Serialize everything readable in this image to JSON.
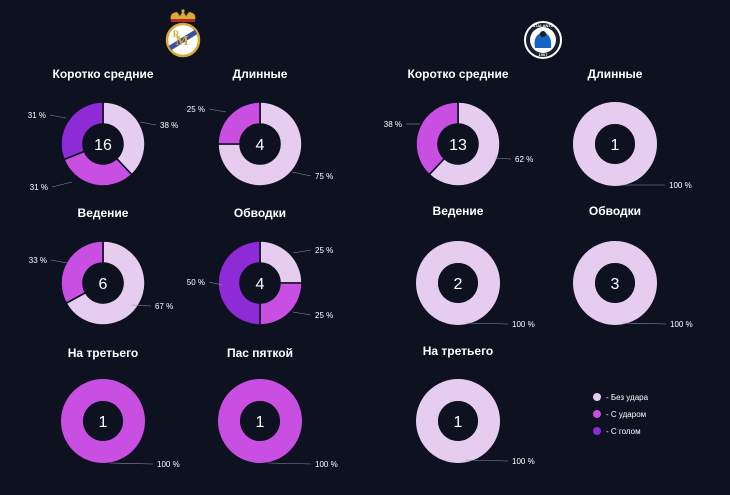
{
  "colors": {
    "bez_udara": "#e6cdf0",
    "s_udarom": "#c94fe3",
    "s_golom": "#8e2bd6",
    "background": "#0d1120",
    "hole": "#0d1120"
  },
  "logos": {
    "left": "real-madrid-crest",
    "right": "atalanta-crest",
    "right_text_top": "ATALANTA",
    "right_text_bottom": "1907"
  },
  "legend": {
    "items": [
      {
        "label": "- Без удара",
        "color": "#e6cdf0"
      },
      {
        "label": "- С ударом",
        "color": "#c94fe3"
      },
      {
        "label": "- С голом",
        "color": "#8e2bd6"
      }
    ]
  },
  "chart_data": [
    {
      "type": "pie",
      "team": "left",
      "title": "Коротко средние",
      "total": "16",
      "slices": [
        {
          "name": "Без удара",
          "value": 38,
          "label": "38 %"
        },
        {
          "name": "С ударом",
          "value": 31,
          "label": "31 %"
        },
        {
          "name": "С голом",
          "value": 31,
          "label": "31 %"
        }
      ]
    },
    {
      "type": "pie",
      "team": "left",
      "title": "Длинные",
      "total": "4",
      "slices": [
        {
          "name": "Без удара",
          "value": 75,
          "label": "75 %"
        },
        {
          "name": "С ударом",
          "value": 25,
          "label": "25 %"
        }
      ]
    },
    {
      "type": "pie",
      "team": "left",
      "title": "Ведение",
      "total": "6",
      "slices": [
        {
          "name": "Без удара",
          "value": 67,
          "label": "67 %"
        },
        {
          "name": "С ударом",
          "value": 33,
          "label": "33 %"
        }
      ]
    },
    {
      "type": "pie",
      "team": "left",
      "title": "Обводки",
      "total": "4",
      "slices": [
        {
          "name": "Без удара",
          "value": 25,
          "label": "25 %"
        },
        {
          "name": "С ударом",
          "value": 25,
          "label": "25 %"
        },
        {
          "name": "С голом",
          "value": 50,
          "label": "50 %"
        }
      ]
    },
    {
      "type": "pie",
      "team": "left",
      "title": "На третьего",
      "total": "1",
      "slices": [
        {
          "name": "С ударом",
          "value": 100,
          "label": "100 %"
        }
      ]
    },
    {
      "type": "pie",
      "team": "left",
      "title": "Пас пяткой",
      "total": "1",
      "slices": [
        {
          "name": "С ударом",
          "value": 100,
          "label": "100 %"
        }
      ]
    },
    {
      "type": "pie",
      "team": "right",
      "title": "Коротко средние",
      "total": "13",
      "slices": [
        {
          "name": "Без удара",
          "value": 62,
          "label": "62 %"
        },
        {
          "name": "С ударом",
          "value": 38,
          "label": "38 %"
        }
      ]
    },
    {
      "type": "pie",
      "team": "right",
      "title": "Длинные",
      "total": "1",
      "slices": [
        {
          "name": "Без удара",
          "value": 100,
          "label": "100 %"
        }
      ]
    },
    {
      "type": "pie",
      "team": "right",
      "title": "Ведение",
      "total": "2",
      "slices": [
        {
          "name": "Без удара",
          "value": 100,
          "label": "100 %"
        }
      ]
    },
    {
      "type": "pie",
      "team": "right",
      "title": "Обводки",
      "total": "3",
      "slices": [
        {
          "name": "Без удара",
          "value": 100,
          "label": "100 %"
        }
      ]
    },
    {
      "type": "pie",
      "team": "right",
      "title": "На третьего",
      "total": "1",
      "slices": [
        {
          "name": "Без удара",
          "value": 100,
          "label": "100 %"
        }
      ]
    }
  ]
}
